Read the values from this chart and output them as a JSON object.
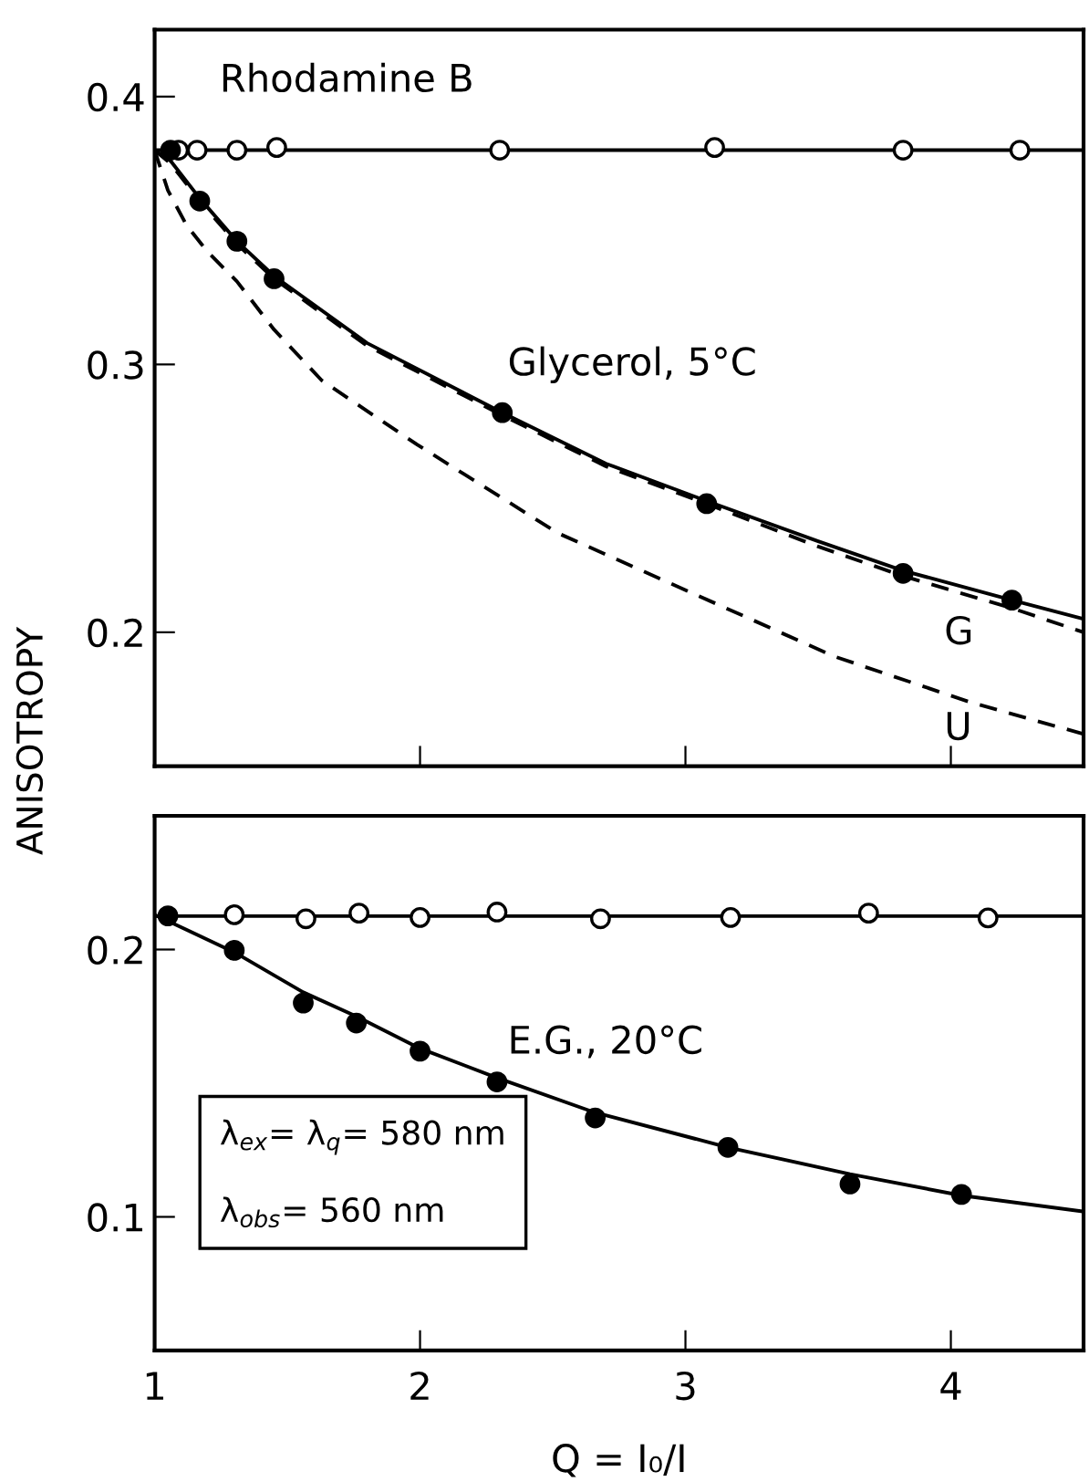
{
  "chart_data": [
    {
      "type": "line",
      "ylabel": "ANISOTROPY",
      "xlim": [
        1,
        4.5
      ],
      "ylim": [
        0.15,
        0.425
      ],
      "xticks": [
        1,
        2,
        3,
        4
      ],
      "yticks": [
        0.2,
        0.3,
        0.4
      ],
      "tick_labels": "y",
      "grid": false,
      "legend": false,
      "annotations": [
        "Rhodamine B",
        "Glycerol, 5°C",
        "G",
        "U"
      ],
      "series": [
        {
          "line_style": "solid",
          "color": "#000000",
          "x": [
            1.0,
            4.5
          ],
          "values": [
            0.38,
            0.38
          ]
        },
        {
          "type": "scatter",
          "marker": "circle",
          "color": "#ffffff",
          "x": [
            1.09,
            1.16,
            1.31,
            1.46,
            2.3,
            3.11,
            3.82,
            4.26
          ],
          "values": [
            0.38,
            0.38,
            0.38,
            0.381,
            0.38,
            0.381,
            0.38,
            0.38
          ]
        },
        {
          "line_style": "solid",
          "color": "#000000",
          "x": [
            1.0,
            1.06,
            1.17,
            1.31,
            1.45,
            1.8,
            2.31,
            2.7,
            3.08,
            3.5,
            3.82,
            4.23,
            4.5
          ],
          "values": [
            0.38,
            0.376,
            0.362,
            0.346,
            0.333,
            0.308,
            0.282,
            0.263,
            0.249,
            0.234,
            0.223,
            0.212,
            0.205
          ]
        },
        {
          "line_style": "dashed",
          "color": "#000000",
          "x": [
            1.0,
            1.06,
            1.17,
            1.31,
            1.45,
            1.8,
            2.31,
            2.7,
            3.08,
            3.5,
            3.82,
            4.23,
            4.5
          ],
          "values": [
            0.38,
            0.375,
            0.361,
            0.345,
            0.332,
            0.307,
            0.281,
            0.262,
            0.248,
            0.232,
            0.221,
            0.209,
            0.2
          ]
        },
        {
          "line_style": "dashed",
          "color": "#000000",
          "x": [
            1.0,
            1.05,
            1.12,
            1.2,
            1.31,
            1.45,
            1.63,
            1.99,
            2.52,
            3.04,
            3.56,
            4.07,
            4.5
          ],
          "values": [
            0.38,
            0.365,
            0.352,
            0.342,
            0.331,
            0.313,
            0.294,
            0.27,
            0.237,
            0.214,
            0.191,
            0.174,
            0.162
          ]
        },
        {
          "type": "scatter",
          "marker": "circle",
          "color": "#000000",
          "x": [
            1.06,
            1.17,
            1.31,
            1.45,
            2.31,
            3.08,
            3.82,
            4.23
          ],
          "values": [
            0.38,
            0.361,
            0.346,
            0.332,
            0.282,
            0.248,
            0.222,
            0.212
          ]
        }
      ]
    },
    {
      "type": "line",
      "xlabel": "Q = I₀/I",
      "xlim": [
        1,
        4.5
      ],
      "ylim": [
        0.05,
        0.25
      ],
      "xticks": [
        1,
        2,
        3,
        4
      ],
      "yticks": [
        0.1,
        0.2
      ],
      "grid": false,
      "legend": false,
      "annotations": [
        "E.G., 20°C",
        "λ$_{ex}$= λ$_{q}$= 580 nm",
        "λ$_{obs}$= 560 nm"
      ],
      "series": [
        {
          "line_style": "solid",
          "color": "#000000",
          "x": [
            1.0,
            4.5
          ],
          "values": [
            0.2125,
            0.2125
          ]
        },
        {
          "type": "scatter",
          "marker": "circle",
          "color": "#ffffff",
          "x": [
            1.3,
            1.57,
            1.77,
            2.0,
            2.29,
            2.68,
            3.17,
            3.69,
            4.14
          ],
          "values": [
            0.213,
            0.2115,
            0.2136,
            0.212,
            0.214,
            0.2115,
            0.212,
            0.2136,
            0.2118
          ]
        },
        {
          "line_style": "solid",
          "color": "#000000",
          "x": [
            1.0,
            1.3,
            1.56,
            1.76,
            2.0,
            2.29,
            2.66,
            3.16,
            3.62,
            4.04,
            4.5
          ],
          "values": [
            0.213,
            0.199,
            0.184,
            0.175,
            0.163,
            0.152,
            0.139,
            0.126,
            0.116,
            0.108,
            0.102
          ]
        },
        {
          "type": "scatter",
          "marker": "circle",
          "color": "#000000",
          "x": [
            1.05,
            1.3,
            1.56,
            1.76,
            2.0,
            2.29,
            2.66,
            3.16,
            3.62,
            4.04
          ],
          "values": [
            0.2126,
            0.1997,
            0.18,
            0.1725,
            0.162,
            0.1505,
            0.137,
            0.126,
            0.1123,
            0.1084
          ]
        }
      ]
    }
  ]
}
